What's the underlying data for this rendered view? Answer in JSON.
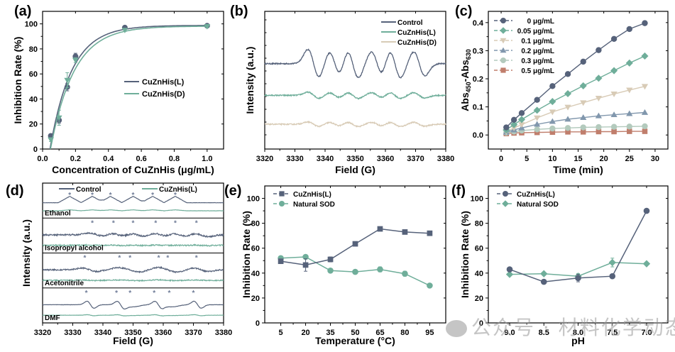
{
  "colors": {
    "dark": "#56627a",
    "teal": "#6fae9a",
    "beige": "#d8cbb6",
    "bluegray": "#8197ad",
    "sage": "#b3cabd",
    "terracotta": "#c07e6c",
    "axis": "#000000"
  },
  "watermark": "公众号 · 材料化学动态",
  "chart_data": [
    {
      "id": "a",
      "panel_label": "(a)",
      "type": "scatter",
      "title": "",
      "xlabel": "Concentration of CuZnHis (μg/mL)",
      "ylabel": "Inhibition Rate (%)",
      "xlim": [
        0.0,
        1.1
      ],
      "ylim": [
        0,
        110
      ],
      "xticks": [
        0.0,
        0.2,
        0.4,
        0.6,
        0.8,
        1.0
      ],
      "xticklabels": [
        "0.0",
        "0.2",
        "0.4",
        "0.6",
        "0.8",
        "1.0"
      ],
      "yticks": [
        0,
        20,
        40,
        60,
        80,
        100
      ],
      "yticklabels": [
        "0",
        "20",
        "40",
        "60",
        "80",
        "100"
      ],
      "legend": "center-right",
      "series": [
        {
          "name": "CuZnHis(L)",
          "color": "dark",
          "marker": "circle",
          "x": [
            0.05,
            0.1,
            0.15,
            0.2,
            0.5,
            1.0
          ],
          "y": [
            10.5,
            23,
            49.5,
            74,
            97,
            98.5
          ],
          "err": [
            1.5,
            2.5,
            3,
            2.5,
            1,
            1
          ],
          "fit": {
            "a": 98.8,
            "k": 7.6,
            "x0": 0.045
          }
        },
        {
          "name": "CuZnHis(D)",
          "color": "teal",
          "marker": "triangle-down",
          "x": [
            0.05,
            0.1,
            0.15,
            0.2,
            0.5,
            1.0
          ],
          "y": [
            7.5,
            25,
            55,
            71,
            95,
            98
          ],
          "err": [
            1.5,
            6,
            6,
            2,
            1,
            1
          ],
          "fit": {
            "a": 98.2,
            "k": 7.0,
            "x0": 0.048
          }
        }
      ]
    },
    {
      "id": "b",
      "panel_label": "(b)",
      "type": "line",
      "title": "",
      "xlabel": "Field (G)",
      "ylabel": "Intensity (a.u.)",
      "xlim": [
        3320,
        3380
      ],
      "xticks": [
        3320,
        3330,
        3340,
        3350,
        3360,
        3370,
        3380
      ],
      "xticklabels": [
        "3320",
        "3330",
        "3340",
        "3350",
        "3360",
        "3370",
        "3380"
      ],
      "legend": "top-right",
      "peaks": [
        3335,
        3342,
        3348,
        3356,
        3362,
        3370
      ],
      "series": [
        {
          "name": "Control",
          "color": "dark",
          "baseline": 0.62,
          "amplitude": 1.0,
          "noise": 0.02
        },
        {
          "name": "CuZnHis(L)",
          "color": "teal",
          "baseline": 0.39,
          "amplitude": 0.22,
          "noise": 0.02
        },
        {
          "name": "CuZnHis(D)",
          "color": "beige",
          "baseline": 0.18,
          "amplitude": 0.16,
          "noise": 0.02
        }
      ]
    },
    {
      "id": "c",
      "panel_label": "(c)",
      "type": "line",
      "title": "",
      "xlabel": "Time (min)",
      "ylabel": "Abs450-Abs630",
      "ylabel_main": "Abs",
      "ylabel_sub1": "450",
      "ylabel_mid": "-Abs",
      "ylabel_sub2": "630",
      "xlim": [
        -2.5,
        32.5
      ],
      "ylim": [
        -0.05,
        0.44
      ],
      "xticks": [
        0,
        5,
        10,
        15,
        20,
        25,
        30
      ],
      "xticklabels": [
        "0",
        "5",
        "10",
        "15",
        "20",
        "25",
        "30"
      ],
      "yticks": [
        0.0,
        0.1,
        0.2,
        0.3,
        0.4
      ],
      "yticklabels": [
        "0.0",
        "0.1",
        "0.2",
        "0.3",
        "0.4"
      ],
      "legend": "top-left",
      "x": [
        1,
        2.5,
        4,
        7,
        10,
        13,
        16,
        19,
        22,
        25,
        28
      ],
      "series": [
        {
          "name": "0 μg/mL",
          "color": "dark",
          "marker": "circle",
          "values": [
            0.027,
            0.054,
            0.078,
            0.125,
            0.174,
            0.217,
            0.261,
            0.302,
            0.342,
            0.377,
            0.398
          ]
        },
        {
          "name": "0.05 μg/mL",
          "color": "teal",
          "marker": "diamond",
          "values": [
            0.018,
            0.037,
            0.055,
            0.088,
            0.119,
            0.147,
            0.175,
            0.202,
            0.229,
            0.256,
            0.281
          ]
        },
        {
          "name": "0.1 μg/mL",
          "color": "beige",
          "marker": "triangle-down",
          "values": [
            0.012,
            0.025,
            0.037,
            0.061,
            0.082,
            0.099,
            0.115,
            0.131,
            0.146,
            0.16,
            0.173
          ]
        },
        {
          "name": "0.2 μg/mL",
          "color": "bluegray",
          "marker": "triangle-up",
          "values": [
            0.01,
            0.018,
            0.025,
            0.038,
            0.048,
            0.056,
            0.062,
            0.068,
            0.072,
            0.076,
            0.08
          ]
        },
        {
          "name": "0.3 μg/mL",
          "color": "sage",
          "marker": "hexagon",
          "values": [
            0.008,
            0.012,
            0.016,
            0.02,
            0.023,
            0.025,
            0.027,
            0.028,
            0.029,
            0.03,
            0.031
          ]
        },
        {
          "name": "0.5 μg/mL",
          "color": "terracotta",
          "marker": "square",
          "values": [
            0.005,
            0.007,
            0.008,
            0.009,
            0.01,
            0.011,
            0.011,
            0.012,
            0.012,
            0.013,
            0.013
          ]
        }
      ]
    },
    {
      "id": "d",
      "panel_label": "(d)",
      "type": "line",
      "title": "",
      "xlabel": "Field (G)",
      "ylabel": "Intensity (a.u.)",
      "xlim": [
        3320,
        3380
      ],
      "xticks": [
        3320,
        3330,
        3340,
        3350,
        3360,
        3370,
        3380
      ],
      "xticklabels": [
        "3320",
        "3330",
        "3340",
        "3350",
        "3360",
        "3370",
        "3380"
      ],
      "legend": "top",
      "legend_entries": [
        {
          "name": "Control",
          "color": "dark"
        },
        {
          "name": "CuZnHis(L)",
          "color": "teal"
        }
      ],
      "marker_symbol": "*",
      "subpanels": [
        {
          "solvent": "Ethanol",
          "star_fields": [
            3329,
            3336.5,
            3342.5,
            3350,
            3356.5,
            3364
          ],
          "shape": "triangle",
          "noise": 0.01
        },
        {
          "solvent": "Isopropyl alcohol",
          "star_fields": [
            3336.5,
            3343.5,
            3350,
            3357.5,
            3364,
            3371
          ],
          "shape": "noisy",
          "noise": 0.06
        },
        {
          "solvent": "Acetonitrile",
          "star_fields": [
            3334,
            3345.5,
            3349,
            3358.5,
            3361.5,
            3371
          ],
          "shape": "broad",
          "noise": 0.05
        },
        {
          "solvent": "DMF",
          "star_fields": [
            3334.5,
            3344.5,
            3349,
            3357,
            3362,
            3370
          ],
          "shape": "derivative",
          "noise": 0.01
        }
      ]
    },
    {
      "id": "e",
      "panel_label": "(e)",
      "type": "line",
      "title": "",
      "xlabel": "Temperature (°C)",
      "ylabel": "Inhibition Rate (%)",
      "ylim": [
        0,
        110
      ],
      "categories": [
        "5",
        "20",
        "35",
        "50",
        "65",
        "80",
        "95"
      ],
      "yticks": [
        0,
        20,
        40,
        60,
        80,
        100
      ],
      "yticklabels": [
        "0",
        "20",
        "40",
        "60",
        "80",
        "100"
      ],
      "legend": "top-left",
      "series": [
        {
          "name": "CuZnHis(L)",
          "color": "dark",
          "marker": "square",
          "values": [
            49.5,
            46.5,
            51,
            63.5,
            75.5,
            73,
            72
          ],
          "err": [
            1.5,
            5,
            2,
            1,
            1,
            1,
            1
          ]
        },
        {
          "name": "Natural SOD",
          "color": "teal",
          "marker": "circle",
          "values": [
            52,
            53,
            42,
            41,
            43,
            39.5,
            30
          ],
          "err": [
            1,
            1,
            1,
            1,
            2,
            2,
            1
          ]
        }
      ]
    },
    {
      "id": "f",
      "panel_label": "(f)",
      "type": "line",
      "title": "",
      "xlabel": "pH",
      "ylabel": "Inhibition Rate (%)",
      "ylim": [
        0,
        110
      ],
      "categories": [
        "9.0",
        "8.5",
        "8.0",
        "7.5",
        "7.0"
      ],
      "yticks": [
        0,
        20,
        40,
        60,
        80,
        100
      ],
      "yticklabels": [
        "0",
        "20",
        "40",
        "60",
        "80",
        "100"
      ],
      "legend": "top-left",
      "series": [
        {
          "name": "CuZnHis(L)",
          "color": "dark",
          "marker": "circle",
          "values": [
            43,
            33,
            36,
            37.5,
            90
          ],
          "err": [
            1,
            1,
            3,
            1,
            1
          ]
        },
        {
          "name": "Natural SOD",
          "color": "teal",
          "marker": "diamond",
          "values": [
            39,
            39.5,
            37.5,
            48.5,
            47.5
          ],
          "err": [
            1,
            1,
            2,
            3.5,
            1
          ]
        }
      ]
    }
  ]
}
